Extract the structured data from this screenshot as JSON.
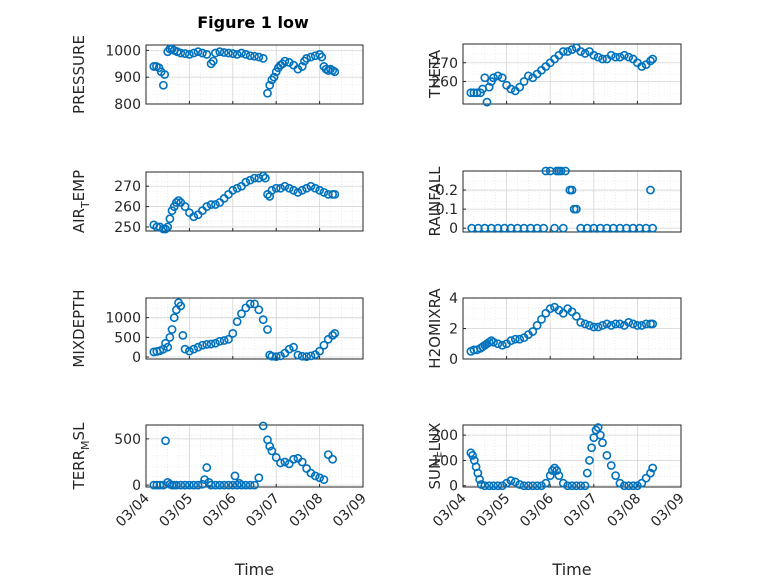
{
  "figure": {
    "title": "Figure 1 low",
    "accent_color": "#0072BD"
  },
  "chart_data": [
    {
      "type": "scatter",
      "ylabel": "PRESSURE",
      "xlabel": "",
      "xlim": [
        0,
        5
      ],
      "ylim": [
        800,
        1020
      ],
      "yticks": [
        800,
        900,
        1000
      ],
      "xticks": [
        "03/04",
        "03/05",
        "03/06",
        "03/07",
        "03/08",
        "03/09"
      ],
      "grid": true,
      "series": [
        {
          "x": [
            0.18,
            0.24,
            0.3,
            0.35,
            0.4,
            0.43,
            0.5,
            0.55,
            0.6,
            0.65,
            0.72,
            0.8,
            0.9,
            1.0,
            1.1,
            1.2,
            1.3,
            1.4,
            1.5,
            1.55,
            1.6,
            1.7,
            1.8,
            1.9,
            2.0,
            2.1,
            2.2,
            2.3,
            2.4,
            2.5,
            2.6,
            2.7,
            2.8,
            2.85,
            2.9,
            2.95,
            3.0,
            3.05,
            3.1,
            3.15,
            3.2,
            3.3,
            3.4,
            3.5,
            3.6,
            3.65,
            3.7,
            3.8,
            3.9,
            4.0,
            4.05,
            4.1,
            4.15,
            4.2,
            4.25,
            4.3,
            4.35
          ],
          "y": [
            940,
            940,
            935,
            920,
            870,
            910,
            995,
            1005,
            1005,
            1000,
            995,
            990,
            988,
            985,
            990,
            995,
            990,
            985,
            950,
            960,
            990,
            995,
            992,
            990,
            988,
            985,
            990,
            985,
            980,
            978,
            975,
            970,
            840,
            870,
            890,
            900,
            920,
            935,
            945,
            950,
            960,
            955,
            945,
            930,
            940,
            960,
            970,
            975,
            980,
            985,
            975,
            940,
            930,
            925,
            930,
            925,
            920
          ]
        }
      ]
    },
    {
      "type": "scatter",
      "ylabel": "THETA",
      "xlabel": "",
      "xlim": [
        0,
        5
      ],
      "ylim": [
        248,
        280
      ],
      "yticks": [
        260,
        270
      ],
      "xticks": [
        "03/04",
        "03/05",
        "03/06",
        "03/07",
        "03/08",
        "03/09"
      ],
      "grid": true,
      "series": [
        {
          "x": [
            0.18,
            0.25,
            0.32,
            0.4,
            0.45,
            0.5,
            0.55,
            0.6,
            0.65,
            0.7,
            0.8,
            0.9,
            1.0,
            1.1,
            1.2,
            1.3,
            1.4,
            1.5,
            1.6,
            1.7,
            1.8,
            1.9,
            2.0,
            2.1,
            2.2,
            2.3,
            2.4,
            2.5,
            2.6,
            2.7,
            2.8,
            2.9,
            3.0,
            3.1,
            3.2,
            3.3,
            3.4,
            3.5,
            3.6,
            3.7,
            3.8,
            3.9,
            4.0,
            4.1,
            4.2,
            4.3,
            4.35
          ],
          "y": [
            254,
            254,
            254,
            254,
            256,
            262,
            249,
            257,
            260,
            262,
            263,
            262,
            258,
            256,
            255,
            257,
            260,
            263,
            262,
            264,
            266,
            268,
            270,
            272,
            274,
            276,
            276,
            277,
            278,
            276,
            275,
            276,
            274,
            273,
            272,
            272,
            274,
            273,
            273,
            274,
            273,
            272,
            270,
            268,
            269,
            271,
            272
          ]
        }
      ]
    },
    {
      "type": "scatter",
      "ylabel": "AIR_TEMP",
      "xlabel": "",
      "xlim": [
        0,
        5
      ],
      "ylim": [
        248,
        277
      ],
      "yticks": [
        250,
        260,
        270
      ],
      "xticks": [
        "03/04",
        "03/05",
        "03/06",
        "03/07",
        "03/08",
        "03/09"
      ],
      "grid": true,
      "series": [
        {
          "x": [
            0.18,
            0.25,
            0.32,
            0.4,
            0.45,
            0.5,
            0.55,
            0.6,
            0.65,
            0.7,
            0.75,
            0.8,
            0.9,
            1.0,
            1.1,
            1.2,
            1.3,
            1.4,
            1.5,
            1.6,
            1.7,
            1.8,
            1.9,
            2.0,
            2.1,
            2.2,
            2.3,
            2.4,
            2.5,
            2.6,
            2.7,
            2.75,
            2.8,
            2.85,
            2.9,
            3.0,
            3.1,
            3.2,
            3.3,
            3.4,
            3.5,
            3.6,
            3.7,
            3.8,
            3.9,
            4.0,
            4.1,
            4.2,
            4.3,
            4.35
          ],
          "y": [
            251,
            250,
            250,
            249,
            249,
            250,
            254,
            258,
            260,
            262,
            263,
            262,
            260,
            257,
            255,
            256,
            258,
            260,
            261,
            261,
            262,
            264,
            266,
            268,
            269,
            270,
            272,
            273,
            274,
            274,
            275,
            274,
            266,
            265,
            268,
            269,
            269,
            270,
            269,
            268,
            267,
            268,
            269,
            270,
            269,
            268,
            267,
            266,
            266,
            266
          ]
        }
      ]
    },
    {
      "type": "scatter",
      "ylabel": "RAINFALL",
      "xlabel": "",
      "xlim": [
        0,
        5
      ],
      "ylim": [
        -0.02,
        0.3
      ],
      "yticks": [
        0,
        0.1,
        0.2
      ],
      "xticks": [
        "03/04",
        "03/05",
        "03/06",
        "03/07",
        "03/08",
        "03/09"
      ],
      "grid": true,
      "series": [
        {
          "x": [
            0.2,
            0.35,
            0.5,
            0.65,
            0.8,
            0.95,
            1.1,
            1.25,
            1.4,
            1.55,
            1.7,
            1.85,
            1.9,
            2.0,
            2.1,
            2.15,
            2.2,
            2.25,
            2.3,
            2.35,
            2.45,
            2.5,
            2.55,
            2.6,
            2.7,
            2.85,
            3.0,
            3.15,
            3.3,
            3.45,
            3.6,
            3.75,
            3.9,
            4.05,
            4.2,
            4.35,
            4.3
          ],
          "y": [
            0,
            0,
            0,
            0,
            0,
            0,
            0,
            0,
            0,
            0,
            0,
            0,
            0.3,
            0.3,
            0,
            0.3,
            0.3,
            0.3,
            0,
            0.3,
            0.2,
            0.2,
            0.1,
            0.1,
            0,
            0,
            0,
            0,
            0,
            0,
            0,
            0,
            0,
            0,
            0,
            0,
            0.2
          ]
        }
      ]
    },
    {
      "type": "scatter",
      "ylabel": "MIXDEPTH",
      "xlabel": "",
      "xlim": [
        0,
        5
      ],
      "ylim": [
        -50,
        1500
      ],
      "yticks": [
        0,
        500,
        1000
      ],
      "xticks": [
        "03/04",
        "03/05",
        "03/06",
        "03/07",
        "03/08",
        "03/09"
      ],
      "grid": true,
      "series": [
        {
          "x": [
            0.18,
            0.25,
            0.32,
            0.4,
            0.45,
            0.5,
            0.55,
            0.6,
            0.65,
            0.7,
            0.75,
            0.8,
            0.85,
            0.9,
            1.0,
            1.1,
            1.2,
            1.3,
            1.4,
            1.5,
            1.6,
            1.7,
            1.8,
            1.9,
            2.0,
            2.1,
            2.2,
            2.3,
            2.4,
            2.5,
            2.6,
            2.7,
            2.8,
            2.85,
            2.9,
            3.0,
            3.1,
            3.2,
            3.3,
            3.4,
            3.5,
            3.6,
            3.7,
            3.8,
            3.9,
            4.0,
            4.1,
            4.2,
            4.3,
            4.35
          ],
          "y": [
            130,
            140,
            160,
            200,
            350,
            250,
            500,
            700,
            1000,
            1200,
            1380,
            1300,
            550,
            200,
            150,
            200,
            250,
            300,
            320,
            330,
            350,
            400,
            420,
            450,
            600,
            900,
            1100,
            1250,
            1350,
            1350,
            1200,
            950,
            700,
            50,
            20,
            10,
            30,
            100,
            200,
            250,
            50,
            20,
            10,
            30,
            60,
            150,
            300,
            450,
            550,
            600
          ]
        }
      ]
    },
    {
      "type": "scatter",
      "ylabel": "H2OMIXRA",
      "xlabel": "",
      "xlim": [
        0,
        5
      ],
      "ylim": [
        0,
        4
      ],
      "yticks": [
        0,
        2,
        4
      ],
      "xticks": [
        "03/04",
        "03/05",
        "03/06",
        "03/07",
        "03/08",
        "03/09"
      ],
      "grid": true,
      "series": [
        {
          "x": [
            0.18,
            0.25,
            0.32,
            0.4,
            0.45,
            0.5,
            0.55,
            0.6,
            0.65,
            0.7,
            0.8,
            0.9,
            1.0,
            1.1,
            1.2,
            1.3,
            1.4,
            1.5,
            1.6,
            1.7,
            1.8,
            1.9,
            2.0,
            2.1,
            2.2,
            2.3,
            2.4,
            2.5,
            2.6,
            2.7,
            2.8,
            2.9,
            3.0,
            3.1,
            3.2,
            3.3,
            3.4,
            3.5,
            3.6,
            3.7,
            3.8,
            3.9,
            4.0,
            4.1,
            4.2,
            4.3,
            4.35
          ],
          "y": [
            0.5,
            0.6,
            0.6,
            0.7,
            0.8,
            0.9,
            1.0,
            1.1,
            1.2,
            1.1,
            1.0,
            0.9,
            1.0,
            1.2,
            1.3,
            1.3,
            1.4,
            1.6,
            1.8,
            2.2,
            2.6,
            3.0,
            3.3,
            3.4,
            3.2,
            3.0,
            3.3,
            3.1,
            2.8,
            2.4,
            2.3,
            2.2,
            2.1,
            2.1,
            2.2,
            2.3,
            2.2,
            2.3,
            2.3,
            2.2,
            2.4,
            2.3,
            2.2,
            2.2,
            2.3,
            2.3,
            2.3
          ]
        }
      ]
    },
    {
      "type": "scatter",
      "ylabel": "TERR_MSL",
      "xlabel": "Time",
      "xlim": [
        0,
        5
      ],
      "ylim": [
        -20,
        650
      ],
      "yticks": [
        0,
        500
      ],
      "xticks": [
        "03/04",
        "03/05",
        "03/06",
        "03/07",
        "03/08",
        "03/09"
      ],
      "grid": true,
      "series": [
        {
          "x": [
            0.18,
            0.25,
            0.32,
            0.4,
            0.45,
            0.5,
            0.55,
            0.6,
            0.65,
            0.7,
            0.8,
            0.9,
            1.0,
            1.1,
            1.2,
            1.3,
            1.35,
            1.4,
            1.45,
            1.5,
            1.6,
            1.7,
            1.8,
            1.9,
            2.0,
            2.05,
            2.1,
            2.15,
            2.2,
            2.3,
            2.4,
            2.5,
            2.6,
            2.7,
            2.8,
            2.85,
            2.9,
            3.0,
            3.1,
            3.2,
            3.3,
            3.4,
            3.5,
            3.6,
            3.7,
            3.8,
            3.9,
            4.0,
            4.1,
            4.2,
            4.3
          ],
          "y": [
            0,
            0,
            0,
            0,
            480,
            30,
            10,
            0,
            0,
            0,
            0,
            0,
            0,
            0,
            0,
            10,
            60,
            190,
            30,
            0,
            0,
            0,
            0,
            0,
            0,
            100,
            0,
            20,
            0,
            0,
            0,
            0,
            80,
            640,
            490,
            420,
            370,
            300,
            240,
            250,
            230,
            280,
            290,
            250,
            180,
            130,
            100,
            80,
            60,
            330,
            280
          ]
        }
      ]
    },
    {
      "type": "scatter",
      "ylabel": "SUN_FLUX",
      "xlabel": "Time",
      "xlim": [
        0,
        5
      ],
      "ylim": [
        -5,
        240
      ],
      "yticks": [
        0,
        100,
        200
      ],
      "xticks": [
        "03/04",
        "03/05",
        "03/06",
        "03/07",
        "03/08",
        "03/09"
      ],
      "grid": true,
      "series": [
        {
          "x": [
            0.18,
            0.22,
            0.26,
            0.3,
            0.34,
            0.38,
            0.42,
            0.5,
            0.6,
            0.7,
            0.8,
            0.9,
            1.0,
            1.1,
            1.2,
            1.3,
            1.4,
            1.5,
            1.6,
            1.7,
            1.8,
            1.9,
            2.0,
            2.05,
            2.1,
            2.15,
            2.2,
            2.3,
            2.4,
            2.5,
            2.6,
            2.7,
            2.8,
            2.85,
            2.9,
            2.95,
            3.0,
            3.05,
            3.1,
            3.15,
            3.2,
            3.3,
            3.4,
            3.5,
            3.6,
            3.7,
            3.8,
            3.9,
            4.0,
            4.1,
            4.2,
            4.3,
            4.35
          ],
          "y": [
            130,
            120,
            100,
            75,
            50,
            25,
            5,
            0,
            0,
            0,
            0,
            0,
            10,
            20,
            15,
            5,
            0,
            0,
            0,
            0,
            0,
            10,
            40,
            60,
            70,
            60,
            40,
            10,
            0,
            0,
            0,
            0,
            0,
            50,
            100,
            150,
            190,
            220,
            230,
            200,
            170,
            120,
            80,
            40,
            10,
            0,
            0,
            0,
            0,
            10,
            30,
            50,
            70
          ]
        }
      ]
    }
  ]
}
